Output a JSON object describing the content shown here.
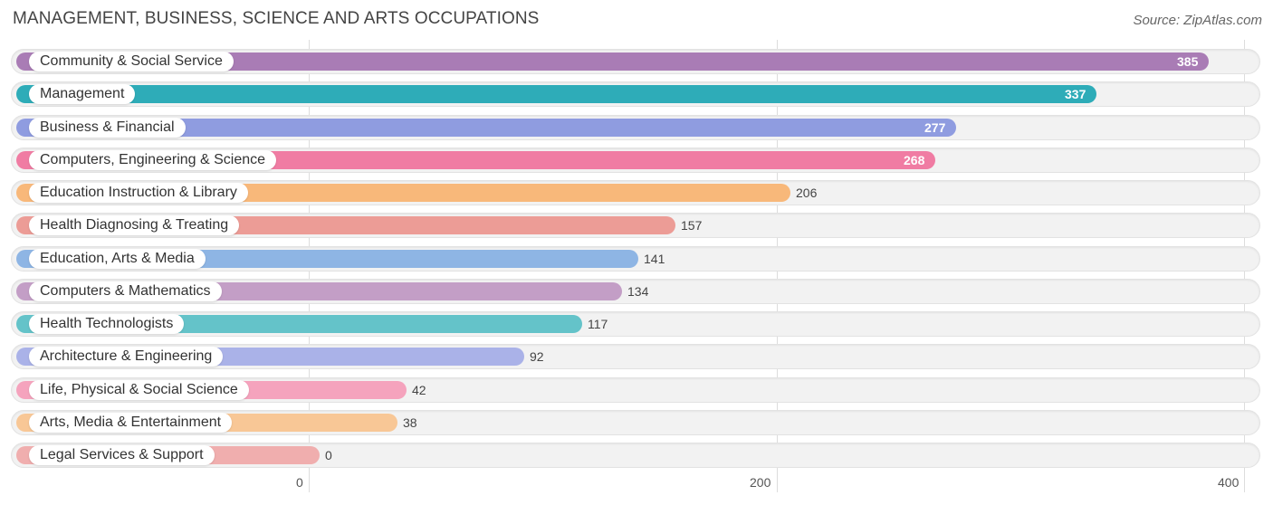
{
  "title": "MANAGEMENT, BUSINESS, SCIENCE AND ARTS OCCUPATIONS",
  "source": "Source: ZipAtlas.com",
  "chart_data": {
    "type": "bar",
    "orientation": "horizontal",
    "title": "MANAGEMENT, BUSINESS, SCIENCE AND ARTS OCCUPATIONS",
    "xlabel": "",
    "ylabel": "",
    "xlim": [
      0,
      400
    ],
    "ticks": [
      "0",
      "200",
      "400"
    ],
    "tick_values": [
      0,
      200,
      400
    ],
    "grid": true,
    "categories": [
      "Community & Social Service",
      "Management",
      "Business & Financial",
      "Computers, Engineering & Science",
      "Education Instruction & Library",
      "Health Diagnosing & Treating",
      "Education, Arts & Media",
      "Computers & Mathematics",
      "Health Technologists",
      "Architecture & Engineering",
      "Life, Physical & Social Science",
      "Arts, Media & Entertainment",
      "Legal Services & Support"
    ],
    "values": [
      385,
      337,
      277,
      268,
      206,
      157,
      141,
      134,
      117,
      92,
      42,
      38,
      0
    ],
    "colors": [
      "#a97cb5",
      "#2eacb8",
      "#8f9ce0",
      "#f07ca3",
      "#f8b87a",
      "#ec9c96",
      "#8eb5e4",
      "#c39ec6",
      "#64c3c9",
      "#aab2e8",
      "#f5a3bd",
      "#f8c796",
      "#f0aeae"
    ]
  }
}
